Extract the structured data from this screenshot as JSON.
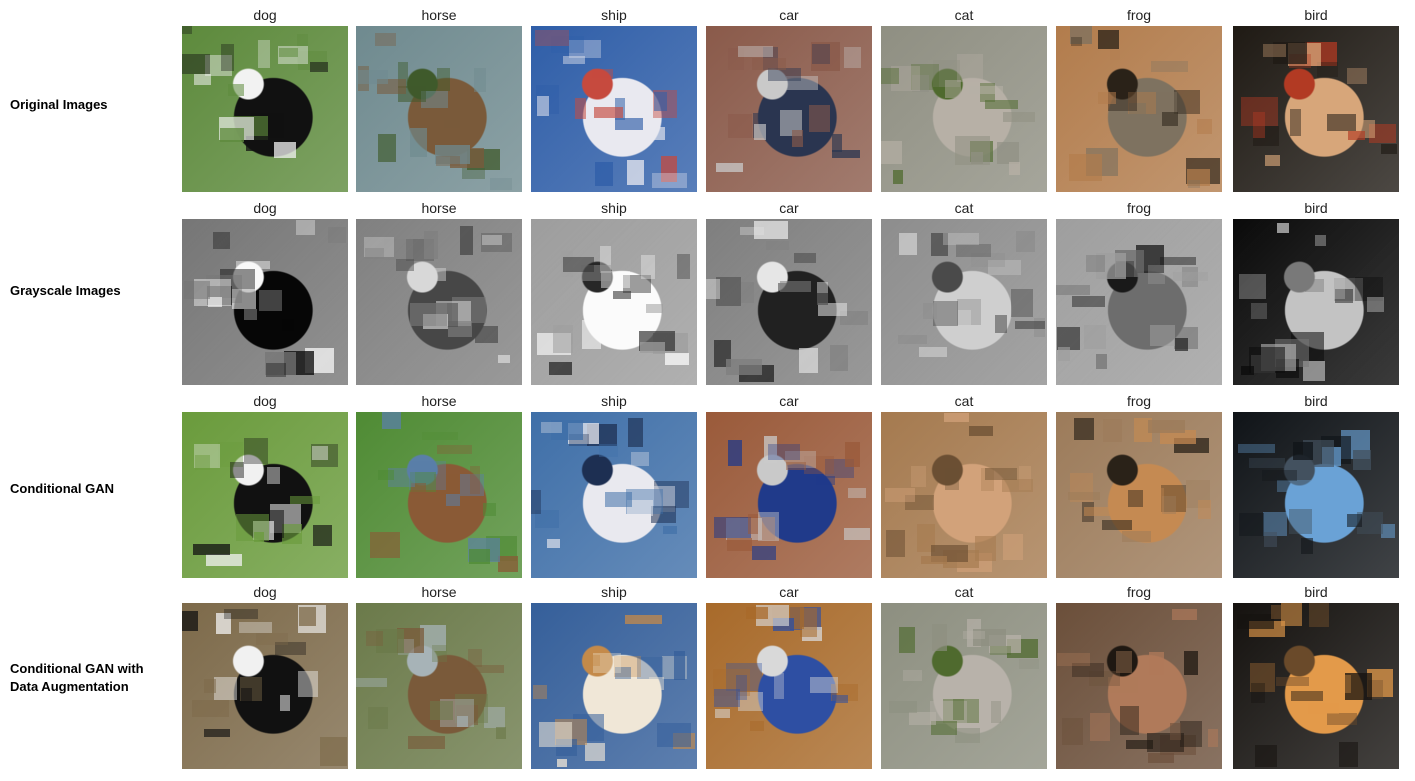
{
  "rows": [
    {
      "label": "Original Images",
      "captions": [
        "dog",
        "horse",
        "ship",
        "car",
        "cat",
        "frog",
        "bird"
      ],
      "mode": "original"
    },
    {
      "label": "Grayscale Images",
      "captions": [
        "dog",
        "horse",
        "ship",
        "car",
        "cat",
        "frog",
        "bird"
      ],
      "mode": "gray"
    },
    {
      "label": "Conditional GAN",
      "captions": [
        "dog",
        "horse",
        "ship",
        "car",
        "cat",
        "frog",
        "bird"
      ],
      "mode": "cgan"
    },
    {
      "label": "Conditional GAN with\nData Augmentation",
      "captions": [
        "dog",
        "horse",
        "ship",
        "car",
        "cat",
        "frog",
        "bird"
      ],
      "mode": "cgan-aug"
    }
  ],
  "palettes": {
    "original": {
      "dog": {
        "bg": "#5d8a3c",
        "fg": "#111111",
        "fg2": "#f2f2f2"
      },
      "horse": {
        "bg": "#6f8a8f",
        "fg": "#7a5a3a",
        "fg2": "#3f5a2b"
      },
      "ship": {
        "bg": "#2f5ea8",
        "fg": "#e9e9f0",
        "fg2": "#c64a3e"
      },
      "car": {
        "bg": "#8a5a4a",
        "fg": "#2a3550",
        "fg2": "#c9c9c9"
      },
      "cat": {
        "bg": "#8f8f82",
        "fg": "#b7b0a6",
        "fg2": "#4f6a2e"
      },
      "frog": {
        "bg": "#b27c4c",
        "fg": "#7e7260",
        "fg2": "#2a2218"
      },
      "bird": {
        "bg": "#1f1a14",
        "fg": "#d7a67a",
        "fg2": "#b23a23"
      }
    },
    "gray": {
      "dog": {
        "bg": "#777777",
        "fg": "#111111",
        "fg2": "#eeeeee"
      },
      "horse": {
        "bg": "#808080",
        "fg": "#4c4c4c",
        "fg2": "#d0d0d0"
      },
      "ship": {
        "bg": "#9a9a9a",
        "fg": "#f0f0f0",
        "fg2": "#2f2f2f"
      },
      "car": {
        "bg": "#7f7f7f",
        "fg": "#2a2a2a",
        "fg2": "#dddddd"
      },
      "cat": {
        "bg": "#8c8c8c",
        "fg": "#c8c8c8",
        "fg2": "#4f4f4f"
      },
      "frog": {
        "bg": "#9b9b9b",
        "fg": "#6f6f6f",
        "fg2": "#222222"
      },
      "bird": {
        "bg": "#151515",
        "fg": "#bdbdbd",
        "fg2": "#7a7a7a"
      }
    },
    "cgan": {
      "dog": {
        "bg": "#6a9b3c",
        "fg": "#111111",
        "fg2": "#f1f1f1"
      },
      "horse": {
        "bg": "#4f8b34",
        "fg": "#8a5a36",
        "fg2": "#5a7fa8"
      },
      "ship": {
        "bg": "#3f6fa8",
        "fg": "#e9e9ef",
        "fg2": "#1d2f52"
      },
      "car": {
        "bg": "#9a5a3a",
        "fg": "#203a8a",
        "fg2": "#c9c9c9"
      },
      "cat": {
        "bg": "#a57a4f",
        "fg": "#d2a27a",
        "fg2": "#6b4f33"
      },
      "frog": {
        "bg": "#9c7b5a",
        "fg": "#c58a52",
        "fg2": "#2a2218"
      },
      "bird": {
        "bg": "#101418",
        "fg": "#6aa2d6",
        "fg2": "#43515f"
      }
    },
    "cgan-aug": {
      "dog": {
        "bg": "#7d6a4a",
        "fg": "#111111",
        "fg2": "#f1f1f1"
      },
      "horse": {
        "bg": "#6b7a4a",
        "fg": "#7a5a3a",
        "fg2": "#a7b3b7"
      },
      "ship": {
        "bg": "#355f9a",
        "fg": "#f0e7d7",
        "fg2": "#c48a4a"
      },
      "car": {
        "bg": "#a86a2a",
        "fg": "#2e4fa3",
        "fg2": "#d9d9d9"
      },
      "cat": {
        "bg": "#8d8f80",
        "fg": "#b8b2aa",
        "fg2": "#4f6a2e"
      },
      "frog": {
        "bg": "#6b4f3a",
        "fg": "#b07a5a",
        "fg2": "#1f1812"
      },
      "bird": {
        "bg": "#15120f",
        "fg": "#e39a4a",
        "fg2": "#6a4a2a"
      }
    }
  }
}
